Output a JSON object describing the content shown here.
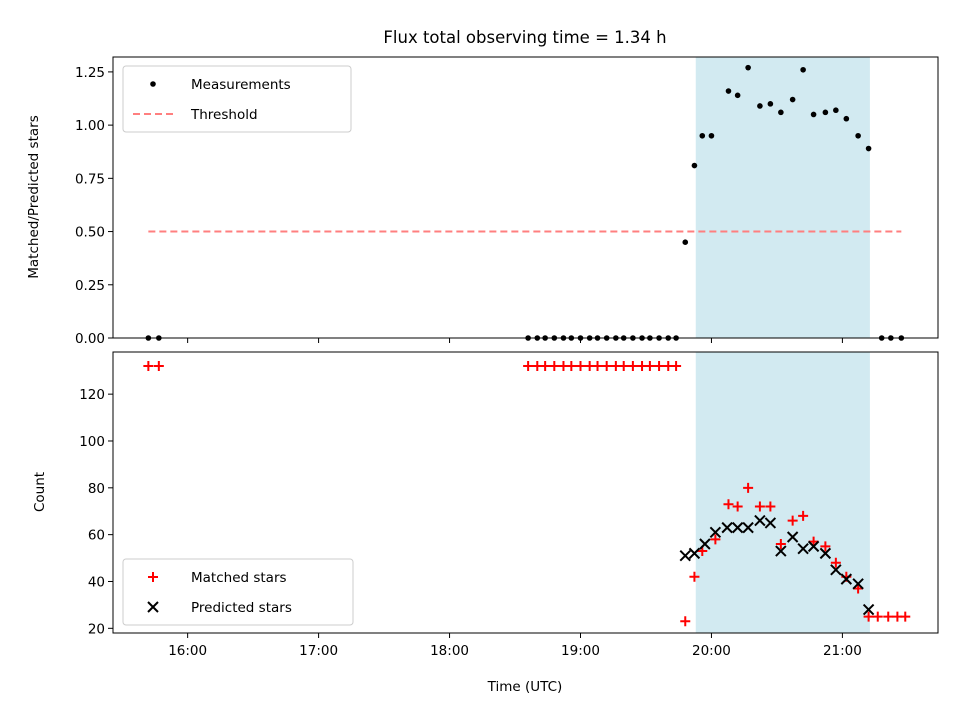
{
  "chart_data": [
    {
      "type": "scatter",
      "title": "Flux total observing time = 1.34 h",
      "xlabel": "",
      "ylabel": "Matched/Predicted stars",
      "ylim": [
        0,
        1.32
      ],
      "yticks": [
        "0.00",
        "0.25",
        "0.50",
        "0.75",
        "1.00",
        "1.25"
      ],
      "xlim": [
        15.43,
        21.73
      ],
      "x_unit": "hours UTC",
      "shaded_interval": {
        "start": 19.88,
        "end": 21.21,
        "color": "#add8e6"
      },
      "series": [
        {
          "name": "Measurements",
          "marker": "dot",
          "color": "#000000",
          "x": [
            15.7,
            15.78,
            18.6,
            18.67,
            18.73,
            18.8,
            18.87,
            18.93,
            19.0,
            19.07,
            19.13,
            19.2,
            19.27,
            19.33,
            19.4,
            19.47,
            19.53,
            19.6,
            19.67,
            19.73,
            19.8,
            19.87,
            19.93,
            20.0,
            20.13,
            20.2,
            20.28,
            20.37,
            20.45,
            20.53,
            20.62,
            20.7,
            20.78,
            20.87,
            20.95,
            21.03,
            21.12,
            21.2,
            21.3,
            21.37,
            21.45
          ],
          "y": [
            0,
            0,
            0,
            0,
            0,
            0,
            0,
            0,
            0,
            0,
            0,
            0,
            0,
            0,
            0,
            0,
            0,
            0,
            0,
            0,
            0.45,
            0.81,
            0.95,
            0.95,
            1.16,
            1.14,
            1.27,
            1.09,
            1.1,
            1.06,
            1.12,
            1.26,
            1.05,
            1.06,
            1.07,
            1.03,
            0.95,
            0.89,
            0,
            0,
            0
          ]
        },
        {
          "name": "Threshold",
          "marker": "dashed-line",
          "color": "#ff7f7f",
          "x": [
            15.7,
            21.45
          ],
          "y": [
            0.5,
            0.5
          ]
        }
      ],
      "legend": "upper-left"
    },
    {
      "type": "scatter",
      "title": "",
      "xlabel": "Time (UTC)",
      "ylabel": "Count",
      "ylim": [
        18,
        138
      ],
      "yticks": [
        "20",
        "40",
        "60",
        "80",
        "100",
        "120"
      ],
      "xlim": [
        15.43,
        21.73
      ],
      "xticks": [
        "16:00",
        "17:00",
        "18:00",
        "19:00",
        "20:00",
        "21:00"
      ],
      "shaded_interval": {
        "start": 19.88,
        "end": 21.21,
        "color": "#add8e6"
      },
      "series": [
        {
          "name": "Matched stars",
          "marker": "plus",
          "color": "#ff0000",
          "x": [
            15.7,
            15.78,
            18.6,
            18.67,
            18.73,
            18.8,
            18.87,
            18.93,
            19.0,
            19.07,
            19.13,
            19.2,
            19.27,
            19.33,
            19.4,
            19.47,
            19.53,
            19.6,
            19.67,
            19.73,
            19.8,
            19.87,
            19.93,
            20.03,
            20.13,
            20.2,
            20.28,
            20.37,
            20.45,
            20.53,
            20.62,
            20.7,
            20.78,
            20.87,
            20.95,
            21.03,
            21.12,
            21.2,
            21.27,
            21.35,
            21.42,
            21.48
          ],
          "y": [
            132,
            132,
            132,
            132,
            132,
            132,
            132,
            132,
            132,
            132,
            132,
            132,
            132,
            132,
            132,
            132,
            132,
            132,
            132,
            132,
            23,
            42,
            53,
            58,
            73,
            72,
            80,
            72,
            72,
            56,
            66,
            68,
            57,
            55,
            48,
            42,
            37,
            25,
            25,
            25,
            25,
            25
          ]
        },
        {
          "name": "Predicted stars",
          "marker": "x",
          "color": "#000000",
          "x": [
            19.8,
            19.87,
            19.95,
            20.03,
            20.12,
            20.2,
            20.28,
            20.37,
            20.45,
            20.53,
            20.62,
            20.7,
            20.78,
            20.87,
            20.95,
            21.03,
            21.12,
            21.2
          ],
          "y": [
            51,
            52,
            56,
            61,
            63,
            63,
            63,
            66,
            65,
            53,
            59,
            54,
            55,
            52,
            45,
            41,
            39,
            28
          ]
        }
      ],
      "legend": "lower-left"
    }
  ]
}
